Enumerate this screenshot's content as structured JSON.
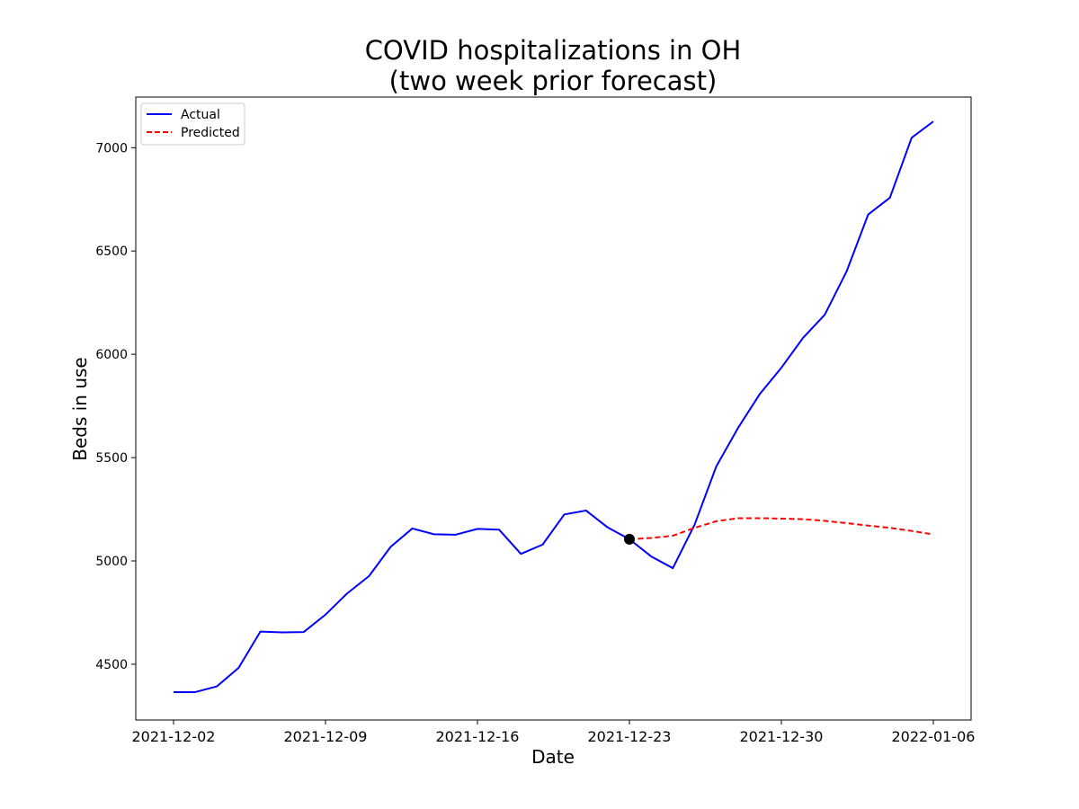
{
  "chart_data": {
    "type": "line",
    "title_line1": "COVID hospitalizations in OH",
    "title_line2": "(two week prior forecast)",
    "xlabel": "Date",
    "ylabel": "Beds in use",
    "x_ticks": [
      "2021-12-02",
      "2021-12-09",
      "2021-12-16",
      "2021-12-23",
      "2021-12-30",
      "2022-01-06"
    ],
    "y_ticks": [
      4500,
      5000,
      5500,
      6000,
      6500,
      7000
    ],
    "ylim": [
      4230,
      7245
    ],
    "xlim": [
      "2021-12-00",
      "2022-01-08"
    ],
    "grid": false,
    "legend_position": "top-left",
    "series": [
      {
        "name": "Actual",
        "color": "#0000ff",
        "style": "solid",
        "points": [
          [
            "2021-12-02",
            4365
          ],
          [
            "2021-12-03",
            4365
          ],
          [
            "2021-12-04",
            4393
          ],
          [
            "2021-12-05",
            4483
          ],
          [
            "2021-12-06",
            4658
          ],
          [
            "2021-12-07",
            4654
          ],
          [
            "2021-12-08",
            4656
          ],
          [
            "2021-12-09",
            4740
          ],
          [
            "2021-12-10",
            4843
          ],
          [
            "2021-12-11",
            4926
          ],
          [
            "2021-12-12",
            5068
          ],
          [
            "2021-12-13",
            5157
          ],
          [
            "2021-12-14",
            5129
          ],
          [
            "2021-12-15",
            5127
          ],
          [
            "2021-12-16",
            5155
          ],
          [
            "2021-12-17",
            5151
          ],
          [
            "2021-12-18",
            5034
          ],
          [
            "2021-12-19",
            5079
          ],
          [
            "2021-12-20",
            5225
          ],
          [
            "2021-12-21",
            5244
          ],
          [
            "2021-12-22",
            5162
          ],
          [
            "2021-12-23",
            5105
          ],
          [
            "2021-12-24",
            5022
          ],
          [
            "2021-12-25",
            4965
          ],
          [
            "2021-12-26",
            5175
          ],
          [
            "2021-12-27",
            5457
          ],
          [
            "2021-12-28",
            5643
          ],
          [
            "2021-12-29",
            5807
          ],
          [
            "2021-12-30",
            5935
          ],
          [
            "2021-12-31",
            6080
          ],
          [
            "2022-01-01",
            6192
          ],
          [
            "2022-01-02",
            6400
          ],
          [
            "2022-01-03",
            6677
          ],
          [
            "2022-01-04",
            6758
          ],
          [
            "2022-01-05",
            7048
          ],
          [
            "2022-01-06",
            7127
          ]
        ]
      },
      {
        "name": "Predicted",
        "color": "#ff0000",
        "style": "dashed",
        "points": [
          [
            "2021-12-23",
            5105
          ],
          [
            "2021-12-24",
            5111
          ],
          [
            "2021-12-25",
            5122
          ],
          [
            "2021-12-26",
            5160
          ],
          [
            "2021-12-27",
            5192
          ],
          [
            "2021-12-28",
            5207
          ],
          [
            "2021-12-29",
            5207
          ],
          [
            "2021-12-30",
            5205
          ],
          [
            "2021-12-31",
            5202
          ],
          [
            "2022-01-01",
            5194
          ],
          [
            "2022-01-02",
            5183
          ],
          [
            "2022-01-03",
            5171
          ],
          [
            "2022-01-04",
            5160
          ],
          [
            "2022-01-05",
            5145
          ],
          [
            "2022-01-06",
            5128
          ]
        ]
      }
    ],
    "marker": {
      "date": "2021-12-23",
      "value": 5105,
      "color": "#000000"
    }
  }
}
